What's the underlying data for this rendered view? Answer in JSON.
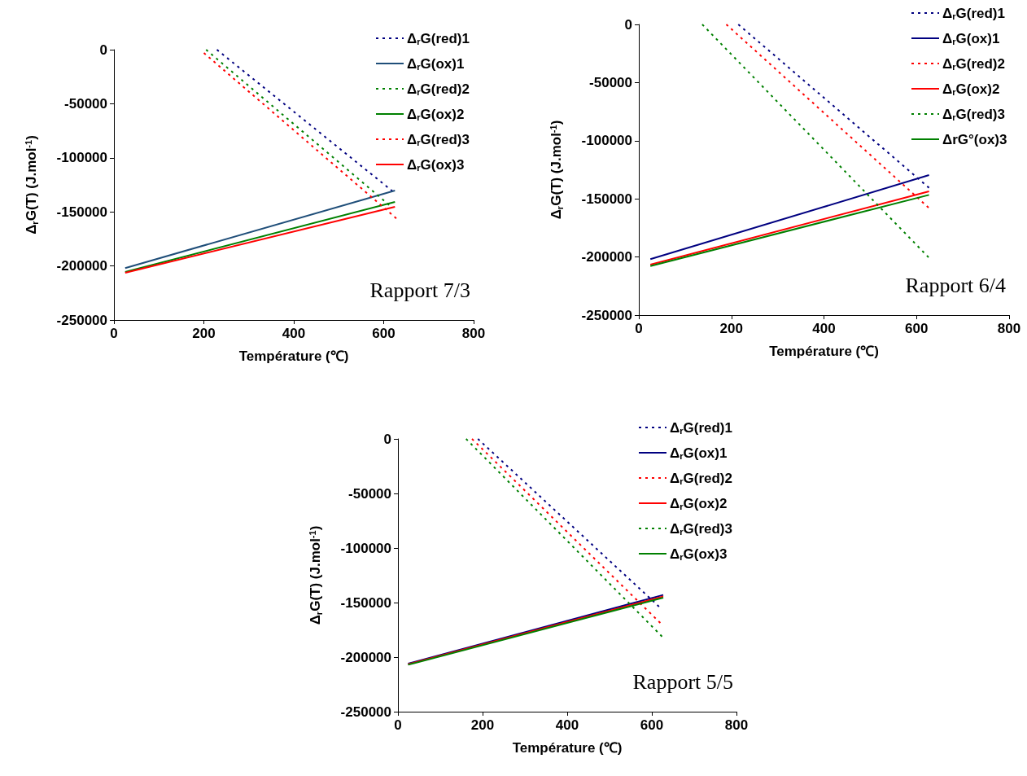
{
  "chart_data": [
    {
      "type": "line",
      "xlabel": "Température (℃)",
      "ylabel": "Δ$_{r}$G(T) (J.mol$^{-1}$)",
      "annotations": [
        "Rapport 7/3"
      ],
      "xlim": [
        0,
        800
      ],
      "xticks": [
        0,
        200,
        400,
        600,
        800
      ],
      "ylim": [
        -250000,
        0
      ],
      "yticks": [
        0,
        -50000,
        -100000,
        -150000,
        -200000,
        -250000
      ],
      "grid": false,
      "legend": "top right",
      "marker": "none",
      "series": [
        {
          "name": "Δ$_{r}$G(red)1",
          "color": "#000080",
          "line_style": "dotted",
          "x": [
            229,
            620
          ],
          "values": [
            0,
            -131000
          ]
        },
        {
          "name": "Δ$_{r}$G(ox)1",
          "color": "#1f4e79",
          "line_style": "solid",
          "x": [
            25,
            625
          ],
          "values": [
            -202000,
            -130300
          ]
        },
        {
          "name": "Δ$_{r}$G(red)2",
          "color": "#008000",
          "line_style": "dotted",
          "x": [
            205,
            612
          ],
          "values": [
            0,
            -143600
          ]
        },
        {
          "name": "Δ$_{r}$G(ox)2",
          "color": "#008000",
          "line_style": "solid",
          "x": [
            25,
            625
          ],
          "values": [
            -205600,
            -140800
          ]
        },
        {
          "name": "Δ$_{r}$G(red)3",
          "color": "#ff0000",
          "line_style": "dotted",
          "x": [
            200,
            628
          ],
          "values": [
            -3000,
            -156000
          ]
        },
        {
          "name": "Δ$_{r}$G(ox)3",
          "color": "#ff0000",
          "line_style": "solid",
          "x": [
            25,
            625
          ],
          "values": [
            -206300,
            -145300
          ]
        }
      ]
    },
    {
      "type": "line",
      "xlabel": "Température (℃)",
      "ylabel": "Δ$_{r}$G(T) (J.mol$^{-1}$)",
      "annotations": [
        "Rapport 6/4"
      ],
      "xlim": [
        0,
        800
      ],
      "xticks": [
        0,
        200,
        400,
        600,
        800
      ],
      "ylim": [
        -250000,
        0
      ],
      "yticks": [
        0,
        -50000,
        -100000,
        -150000,
        -200000,
        -250000
      ],
      "grid": false,
      "legend": "top right",
      "marker": "none",
      "series": [
        {
          "name": "Δ$_{r}$G(red)1",
          "color": "#000080",
          "line_style": "dotted",
          "x": [
            215,
            627
          ],
          "values": [
            0,
            -140500
          ]
        },
        {
          "name": "Δ$_{r}$G(ox)1",
          "color": "#000080",
          "line_style": "solid",
          "x": [
            25,
            627
          ],
          "values": [
            -201900,
            -129600
          ]
        },
        {
          "name": "Δ$_{r}$G(red)2",
          "color": "#ff0000",
          "line_style": "dotted",
          "x": [
            189,
            626
          ],
          "values": [
            0,
            -157600
          ]
        },
        {
          "name": "Δ$_{r}$G(ox)2",
          "color": "#ff0000",
          "line_style": "solid",
          "x": [
            25,
            627
          ],
          "values": [
            -206600,
            -143600
          ]
        },
        {
          "name": "Δ$_{r}$G(red)3",
          "color": "#008000",
          "line_style": "dotted",
          "x": [
            137,
            626
          ],
          "values": [
            0,
            -200300
          ]
        },
        {
          "name": "ΔrG°(ox)3",
          "color": "#008000",
          "line_style": "solid",
          "x": [
            25,
            627
          ],
          "values": [
            -207800,
            -146600
          ]
        }
      ]
    },
    {
      "type": "line",
      "xlabel": "Température (℃)",
      "ylabel": "Δ$_{r}$G(T) (J.mol$^{-1}$)",
      "annotations": [
        "Rapport 5/5"
      ],
      "xlim": [
        0,
        800
      ],
      "xticks": [
        0,
        200,
        400,
        600,
        800
      ],
      "ylim": [
        -250000,
        0
      ],
      "yticks": [
        0,
        -50000,
        -100000,
        -150000,
        -200000,
        -250000
      ],
      "grid": false,
      "legend": "top right",
      "marker": "none",
      "series": [
        {
          "name": "Δ$_{r}$G(red)1",
          "color": "#000080",
          "line_style": "dotted",
          "x": [
            189,
            617
          ],
          "values": [
            0,
            -153700
          ]
        },
        {
          "name": "Δ$_{r}$G(ox)1",
          "color": "#000080",
          "line_style": "solid",
          "x": [
            24,
            627
          ],
          "values": [
            -206000,
            -143000
          ]
        },
        {
          "name": "Δ$_{r}$G(red)2",
          "color": "#ff0000",
          "line_style": "dotted",
          "x": [
            175,
            620
          ],
          "values": [
            0,
            -168700
          ]
        },
        {
          "name": "Δ$_{r}$G(ox)2",
          "color": "#ff0000",
          "line_style": "solid",
          "x": [
            24,
            627
          ],
          "values": [
            -206500,
            -144300
          ]
        },
        {
          "name": "Δ$_{r}$G(red)3",
          "color": "#008000",
          "line_style": "dotted",
          "x": [
            161,
            624
          ],
          "values": [
            0,
            -181100
          ]
        },
        {
          "name": "Δ$_{r}$G(ox)3",
          "color": "#008000",
          "line_style": "solid",
          "x": [
            24,
            627
          ],
          "values": [
            -207000,
            -145500
          ]
        }
      ]
    }
  ]
}
